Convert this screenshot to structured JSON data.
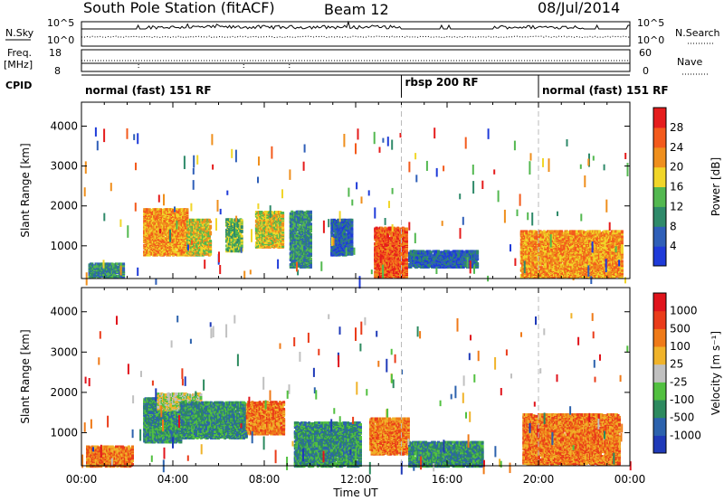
{
  "header": {
    "station": "South Pole Station (fitACF)",
    "beam": "Beam 12",
    "date": "08/Jul/2014"
  },
  "panels_left": {
    "nsky": "N.Sky",
    "freq": "Freq.",
    "freq_unit": "[MHz]",
    "cpid": "CPID"
  },
  "panels_right": {
    "nsearch": "N.Search",
    "nave": "Nave"
  },
  "noise_ticks": {
    "top": "10^5",
    "bottom": "10^0"
  },
  "freq_ticks": {
    "top": "18",
    "bottom": "8"
  },
  "nave_ticks": {
    "top": "60",
    "bottom": "0"
  },
  "cpid_modes": [
    {
      "label": "normal (fast) 151 RF",
      "start_hour": 0,
      "end_hour": 14
    },
    {
      "label": "rbsp 200 RF",
      "start_hour": 14,
      "end_hour": 20
    },
    {
      "label": "normal (fast) 151 RF",
      "start_hour": 20,
      "end_hour": 24
    }
  ],
  "chart_data": [
    {
      "type": "heatmap",
      "name_key": "power",
      "ylabel": "Slant Range [km]",
      "colorbar_label": "Power [dB]",
      "colorbar_ticks": [
        "4",
        "8",
        "12",
        "16",
        "20",
        "24",
        "28"
      ],
      "colorbar_colors": [
        "#1f3bd9",
        "#2f5fb8",
        "#2f8a6a",
        "#53b850",
        "#f1d629",
        "#ef8f1d",
        "#f35a1c",
        "#e51c1c"
      ],
      "xlim": [
        0,
        24
      ],
      "ylim": [
        180,
        4600
      ],
      "yticks": [
        "1000",
        "2000",
        "3000",
        "4000"
      ],
      "regions": [
        {
          "t0": 0.3,
          "t1": 1.8,
          "r0": 250,
          "r1": 600,
          "level": 2
        },
        {
          "t0": 2.7,
          "t1": 4.6,
          "r0": 800,
          "r1": 1950,
          "level": 5
        },
        {
          "t0": 4.6,
          "t1": 5.6,
          "r0": 800,
          "r1": 1700,
          "level": 4
        },
        {
          "t0": 6.3,
          "t1": 7.0,
          "r0": 900,
          "r1": 1700,
          "level": 3
        },
        {
          "t0": 7.6,
          "t1": 8.8,
          "r0": 1000,
          "r1": 1900,
          "level": 4
        },
        {
          "t0": 9.1,
          "t1": 10.0,
          "r0": 500,
          "r1": 1900,
          "level": 2
        },
        {
          "t0": 10.9,
          "t1": 11.8,
          "r0": 800,
          "r1": 1700,
          "level": 1
        },
        {
          "t0": 12.8,
          "t1": 14.2,
          "r0": 250,
          "r1": 1500,
          "level": 6
        },
        {
          "t0": 14.3,
          "t1": 17.3,
          "r0": 500,
          "r1": 900,
          "level": 1
        },
        {
          "t0": 19.2,
          "t1": 23.6,
          "r0": 250,
          "r1": 1400,
          "level": 5
        }
      ]
    },
    {
      "type": "heatmap",
      "name_key": "velocity",
      "ylabel": "Slant Range [km]",
      "colorbar_label": "Velocity [m s⁻¹]",
      "colorbar_ticks": [
        "1000",
        "500",
        "100",
        "25",
        "-25",
        "-100",
        "-500",
        "-1000"
      ],
      "colorbar_colors": [
        "#1f3ab8",
        "#2c62ad",
        "#2d8a5f",
        "#52c040",
        "#c0c0c0",
        "#f0b32a",
        "#ef7a18",
        "#ea3c1a",
        "#e0141c"
      ],
      "xlim": [
        0,
        24
      ],
      "ylim": [
        180,
        4600
      ],
      "yticks": [
        "1000",
        "2000",
        "3000",
        "4000"
      ],
      "xticks": [
        "00:00",
        "04:00",
        "08:00",
        "12:00",
        "16:00",
        "20:00",
        "00:00"
      ],
      "xlabel": "Time UT",
      "regions": [
        {
          "t0": 0.2,
          "t1": 2.2,
          "r0": 200,
          "r1": 700,
          "level": 6
        },
        {
          "t0": 2.7,
          "t1": 4.3,
          "r0": 800,
          "r1": 1900,
          "level": 2
        },
        {
          "t0": 3.3,
          "t1": 5.2,
          "r0": 1600,
          "r1": 2000,
          "level": 4
        },
        {
          "t0": 4.3,
          "t1": 7.2,
          "r0": 900,
          "r1": 1800,
          "level": 2
        },
        {
          "t0": 7.2,
          "t1": 8.8,
          "r0": 1000,
          "r1": 1800,
          "level": 6
        },
        {
          "t0": 9.3,
          "t1": 12.2,
          "r0": 200,
          "r1": 1300,
          "level": 2
        },
        {
          "t0": 12.6,
          "t1": 14.3,
          "r0": 500,
          "r1": 1400,
          "level": 6
        },
        {
          "t0": 14.3,
          "t1": 17.5,
          "r0": 200,
          "r1": 800,
          "level": 2
        },
        {
          "t0": 19.3,
          "t1": 23.5,
          "r0": 250,
          "r1": 1500,
          "level": 6
        }
      ]
    }
  ]
}
